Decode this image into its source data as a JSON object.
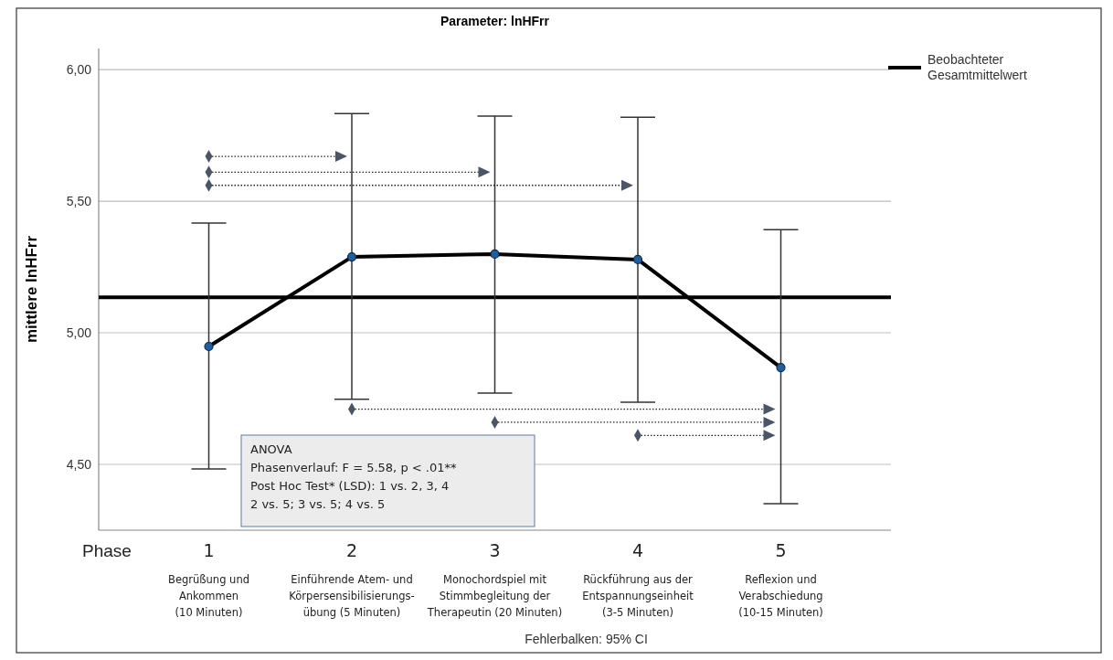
{
  "chart_data": {
    "type": "line",
    "title": "Parameter: lnHFrr",
    "xlabel": "Phase",
    "ylabel": "mittlere lnHFrr",
    "categories": [
      "1\nBegrüßung und\nAnkommen\n(10 Minuten)",
      "2\nEinführende Atem- und\nKörpersensibilisierungs-\nübung (5 Minuten)",
      "3\nMonochordspiel mit\nStimmbegleitung der\nTherapeutin (20 Minuten)",
      "4\nRückführung aus der\nEntspannungseinheit\n(3-5 Minuten)",
      "5\nReflexion und\nVerabschiedung\n(10-15 Minuten)"
    ],
    "series": [
      {
        "color": "#000000",
        "values": [
          4.948,
          5.288,
          5.299,
          5.278,
          4.868
        ],
        "errors": [
          [
            4.483,
            5.417
          ],
          [
            4.747,
            5.833
          ],
          [
            4.771,
            5.823
          ],
          [
            4.736,
            5.819
          ],
          [
            4.351,
            5.392
          ]
        ]
      }
    ],
    "marker": "circle",
    "line_style": "solid",
    "ylim": [
      4.25,
      6.08
    ],
    "yticks": [
      {
        "value": 4.5,
        "label": "4,50"
      },
      {
        "value": 5,
        "label": "5,00"
      },
      {
        "value": 5.5,
        "label": "5,50"
      },
      {
        "value": 6,
        "label": "6,00"
      }
    ],
    "grid": "y",
    "ref_lines": [
      {
        "axis": "y",
        "value": 5.135,
        "label": "Beobachteter\nGesamtmittelwert",
        "color": "#000000"
      }
    ],
    "annotations": [
      "ANOVA\nPhasenverlauf: F = 5.58, p < .01**\nPost Hoc Test* (LSD): 1 vs. 2, 3, 4\n2 vs. 5; 3 vs. 5; 4 vs. 5",
      "Fehlerbalken: 95% CI"
    ]
  }
}
